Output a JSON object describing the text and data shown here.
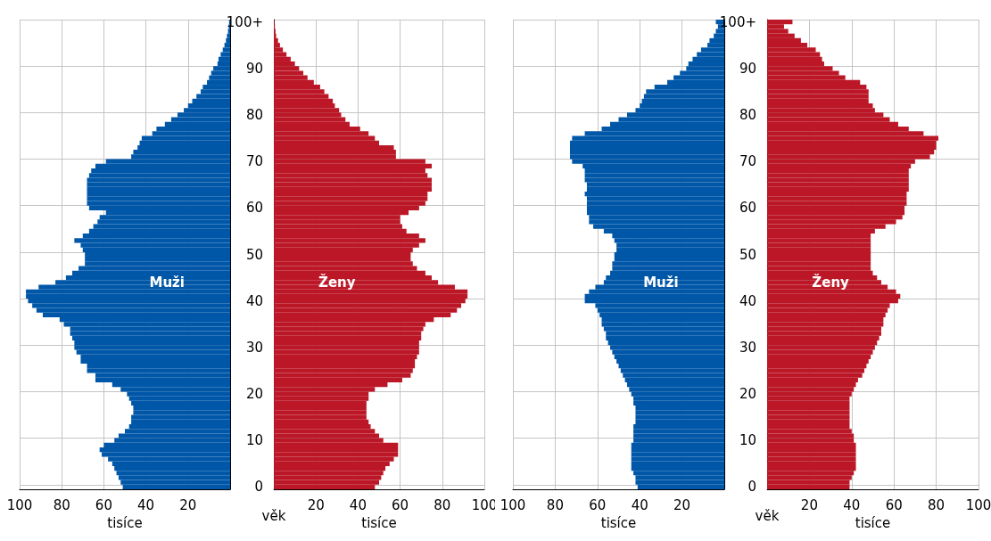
{
  "chart_data": [
    {
      "type": "bar",
      "orientation": "horizontal",
      "xlabel": "tisíce",
      "grid": true,
      "tick_labels": "x",
      "categories": [
        null,
        null,
        null,
        null,
        null,
        null,
        null,
        null,
        null,
        null,
        null,
        null,
        null,
        null,
        null,
        null,
        null,
        null,
        null,
        null,
        null,
        null,
        null,
        null,
        null,
        null,
        null,
        null,
        null,
        null,
        null,
        null,
        null,
        null,
        null,
        null,
        null,
        null,
        null,
        null,
        null,
        null,
        null,
        null,
        null,
        null,
        null,
        null,
        null,
        null,
        null,
        null,
        null,
        null,
        null,
        null,
        null,
        null,
        null,
        null,
        null,
        null,
        null,
        null,
        null,
        null,
        null,
        null,
        null,
        null,
        null,
        null,
        null,
        null,
        null,
        null,
        null,
        null,
        null,
        null,
        null,
        null,
        null,
        null,
        null,
        null,
        null,
        null,
        null,
        null,
        null,
        null,
        null,
        null,
        null,
        null,
        null,
        null,
        null,
        null,
        null
      ],
      "xlim": [
        100,
        0
      ],
      "xticks": [
        100,
        80,
        60,
        40,
        20
      ],
      "series": [
        {
          "name": "Muži",
          "color": "#0057a8",
          "values": [
            0.5,
            0.7,
            1,
            1.5,
            2,
            2.7,
            3.5,
            4.5,
            5.5,
            6,
            8,
            9,
            10,
            11,
            13,
            14,
            16,
            18,
            20,
            22,
            25,
            28,
            31,
            35,
            37,
            42,
            43,
            44,
            46,
            47,
            59,
            64,
            66,
            67,
            68,
            68,
            68,
            68,
            68,
            68,
            67,
            59,
            62,
            63,
            65,
            67,
            70,
            74,
            71,
            70,
            69,
            69,
            69,
            72,
            75,
            78,
            83,
            91,
            97,
            97,
            96,
            94,
            92,
            89,
            81,
            79,
            76,
            76,
            75,
            74,
            74,
            73,
            71,
            71,
            68,
            68,
            64,
            64,
            56,
            52,
            49,
            48,
            47,
            46,
            46,
            47,
            47,
            48,
            50,
            53,
            55,
            60,
            62,
            61,
            58,
            56,
            55,
            54,
            53,
            52,
            51
          ]
        }
      ]
    },
    {
      "type": "bar",
      "orientation": "horizontal",
      "xlabel": "tisíce",
      "ylabel": "věk",
      "grid": true,
      "categories": [
        "100+",
        null,
        null,
        null,
        null,
        null,
        null,
        null,
        null,
        null,
        "90",
        null,
        null,
        null,
        null,
        null,
        null,
        null,
        null,
        null,
        "80",
        null,
        null,
        null,
        null,
        null,
        null,
        null,
        null,
        null,
        "70",
        null,
        null,
        null,
        null,
        null,
        null,
        null,
        null,
        null,
        "60",
        null,
        null,
        null,
        null,
        null,
        null,
        null,
        null,
        null,
        "50",
        null,
        null,
        null,
        null,
        null,
        null,
        null,
        null,
        null,
        "40",
        null,
        null,
        null,
        null,
        null,
        null,
        null,
        null,
        null,
        "30",
        null,
        null,
        null,
        null,
        null,
        null,
        null,
        null,
        null,
        "20",
        null,
        null,
        null,
        null,
        null,
        null,
        null,
        null,
        null,
        "10",
        null,
        null,
        null,
        null,
        null,
        null,
        null,
        null,
        null,
        "0"
      ],
      "xlim": [
        0,
        100
      ],
      "xticks": [
        20,
        40,
        60,
        80,
        100
      ],
      "series": [
        {
          "name": "Ženy",
          "color": "#bb1727",
          "values": [
            0.3,
            0.5,
            0.8,
            1.1,
            2,
            2.9,
            4.3,
            6,
            8,
            10,
            12,
            14,
            16,
            19,
            22,
            24,
            26,
            28,
            29,
            31,
            32,
            34,
            36,
            41,
            45,
            48,
            50,
            57,
            58,
            58,
            72,
            75,
            72,
            73,
            75,
            75,
            75,
            73,
            73,
            72,
            69,
            64,
            60,
            60,
            61,
            63,
            69,
            72,
            69,
            66,
            65,
            65,
            66,
            68,
            72,
            75,
            78,
            86,
            92,
            92,
            91,
            89,
            87,
            84,
            76,
            72,
            71,
            70,
            70,
            69,
            69,
            69,
            68,
            67,
            67,
            66,
            65,
            61,
            54,
            48,
            45,
            45,
            44,
            44,
            44,
            44,
            45,
            46,
            48,
            50,
            52,
            59,
            59,
            59,
            57,
            55,
            53,
            52,
            51,
            50,
            48
          ]
        }
      ]
    },
    {
      "type": "bar",
      "orientation": "horizontal",
      "xlabel": "tisíce",
      "grid": true,
      "tick_labels": "x",
      "categories": [
        null,
        null,
        null,
        null,
        null,
        null,
        null,
        null,
        null,
        null,
        null,
        null,
        null,
        null,
        null,
        null,
        null,
        null,
        null,
        null,
        null,
        null,
        null,
        null,
        null,
        null,
        null,
        null,
        null,
        null,
        null,
        null,
        null,
        null,
        null,
        null,
        null,
        null,
        null,
        null,
        null,
        null,
        null,
        null,
        null,
        null,
        null,
        null,
        null,
        null,
        null,
        null,
        null,
        null,
        null,
        null,
        null,
        null,
        null,
        null,
        null,
        null,
        null,
        null,
        null,
        null,
        null,
        null,
        null,
        null,
        null,
        null,
        null,
        null,
        null,
        null,
        null,
        null,
        null,
        null,
        null,
        null,
        null,
        null,
        null,
        null,
        null,
        null,
        null,
        null,
        null,
        null,
        null,
        null,
        null,
        null,
        null,
        null,
        null,
        null,
        null
      ],
      "xlim": [
        100,
        0
      ],
      "xticks": [
        100,
        80,
        60,
        40,
        20
      ],
      "series": [
        {
          "name": "Muži",
          "color": "#0057a8",
          "values": [
            4,
            3,
            4,
            5,
            7,
            8,
            11,
            13,
            15,
            17,
            18,
            21,
            24,
            27,
            33,
            37,
            38,
            39,
            40,
            42,
            46,
            50,
            54,
            58,
            66,
            72,
            73,
            73,
            73,
            73,
            72,
            67,
            66,
            66,
            66,
            65,
            65,
            66,
            65,
            65,
            65,
            65,
            64,
            64,
            62,
            57,
            53,
            52,
            51,
            51,
            52,
            52,
            53,
            53,
            54,
            56,
            57,
            61,
            64,
            66,
            66,
            61,
            60,
            59,
            58,
            58,
            57,
            56,
            56,
            55,
            54,
            53,
            52,
            51,
            50,
            49,
            48,
            47,
            46,
            45,
            44,
            43,
            43,
            42,
            42,
            42,
            42,
            43,
            43,
            43,
            43,
            44,
            44,
            44,
            44,
            44,
            44,
            43,
            42,
            42,
            41
          ]
        }
      ]
    },
    {
      "type": "bar",
      "orientation": "horizontal",
      "xlabel": "tisíce",
      "ylabel": "věk",
      "grid": true,
      "categories": [
        "100+",
        null,
        null,
        null,
        null,
        null,
        null,
        null,
        null,
        null,
        "90",
        null,
        null,
        null,
        null,
        null,
        null,
        null,
        null,
        null,
        "80",
        null,
        null,
        null,
        null,
        null,
        null,
        null,
        null,
        null,
        "70",
        null,
        null,
        null,
        null,
        null,
        null,
        null,
        null,
        null,
        "60",
        null,
        null,
        null,
        null,
        null,
        null,
        null,
        null,
        null,
        "50",
        null,
        null,
        null,
        null,
        null,
        null,
        null,
        null,
        null,
        "40",
        null,
        null,
        null,
        null,
        null,
        null,
        null,
        null,
        null,
        "30",
        null,
        null,
        null,
        null,
        null,
        null,
        null,
        null,
        null,
        "20",
        null,
        null,
        null,
        null,
        null,
        null,
        null,
        null,
        null,
        "10",
        null,
        null,
        null,
        null,
        null,
        null,
        null,
        null,
        null,
        "0"
      ],
      "xlim": [
        0,
        100
      ],
      "xticks": [
        20,
        40,
        60,
        80,
        100
      ],
      "series": [
        {
          "name": "Ženy",
          "color": "#bb1727",
          "values": [
            12,
            8,
            10,
            13,
            16,
            19,
            23,
            25,
            26,
            27,
            31,
            34,
            37,
            44,
            47,
            48,
            48,
            48,
            50,
            51,
            55,
            58,
            62,
            67,
            74,
            81,
            80,
            80,
            79,
            77,
            70,
            68,
            67,
            67,
            67,
            67,
            67,
            66,
            66,
            66,
            65,
            65,
            64,
            61,
            56,
            51,
            49,
            49,
            49,
            49,
            49,
            49,
            49,
            49,
            50,
            52,
            54,
            57,
            61,
            63,
            62,
            58,
            57,
            56,
            55,
            55,
            54,
            54,
            53,
            52,
            51,
            50,
            49,
            48,
            47,
            46,
            45,
            43,
            42,
            41,
            40,
            39,
            39,
            39,
            39,
            39,
            39,
            39,
            40,
            41,
            41,
            42,
            42,
            42,
            42,
            42,
            42,
            41,
            40,
            39,
            39
          ]
        }
      ]
    }
  ]
}
